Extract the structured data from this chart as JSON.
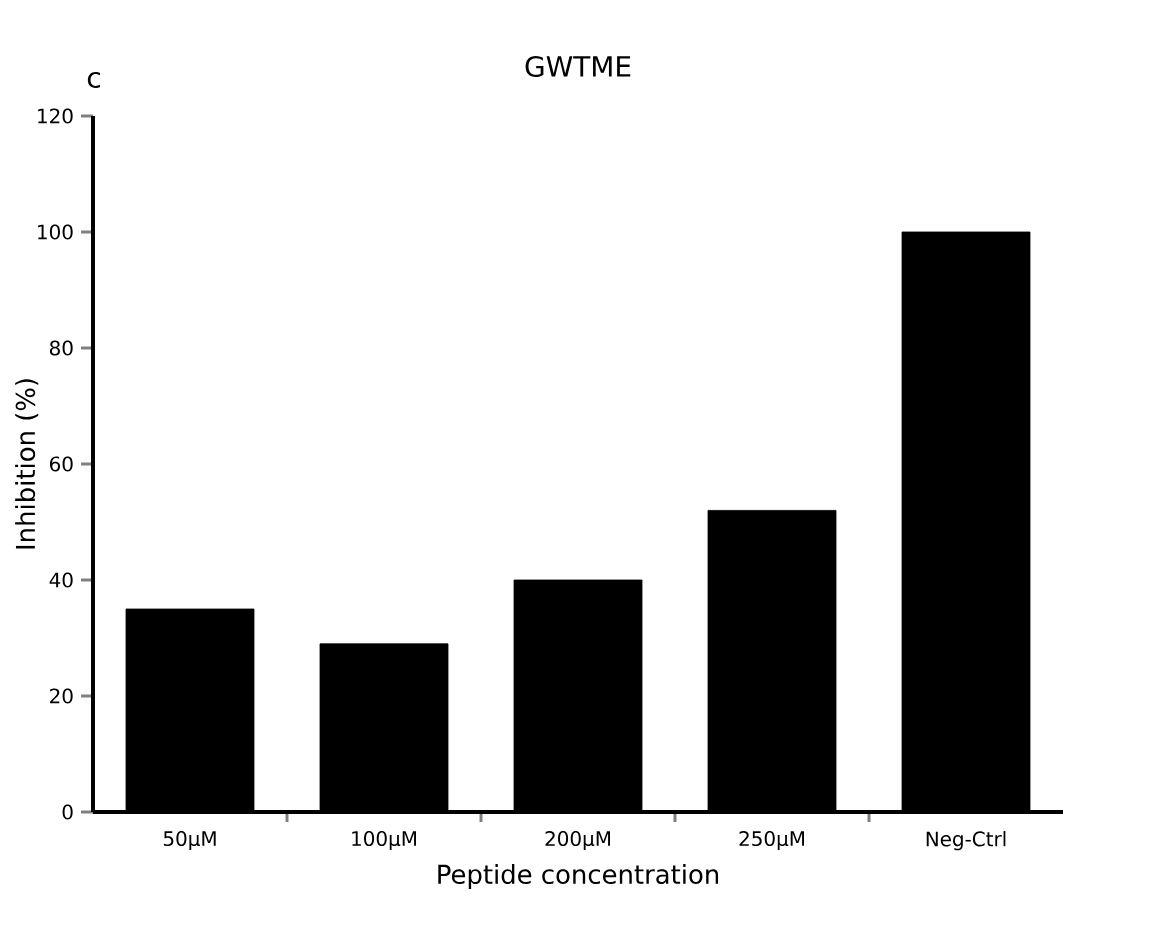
{
  "chart_data": {
    "type": "bar",
    "title": "GWTME",
    "xlabel": "Peptide concentration",
    "ylabel": "Inhibition (%)",
    "categories": [
      "50µM",
      "100µM",
      "200µM",
      "250µM",
      "Neg-Ctrl"
    ],
    "values": [
      35,
      29,
      40,
      52,
      100
    ],
    "color": "#000000",
    "ylim": [
      0,
      120
    ],
    "yticks": [
      0,
      20,
      40,
      60,
      80,
      100,
      120
    ],
    "annotations": [
      "c"
    ]
  }
}
